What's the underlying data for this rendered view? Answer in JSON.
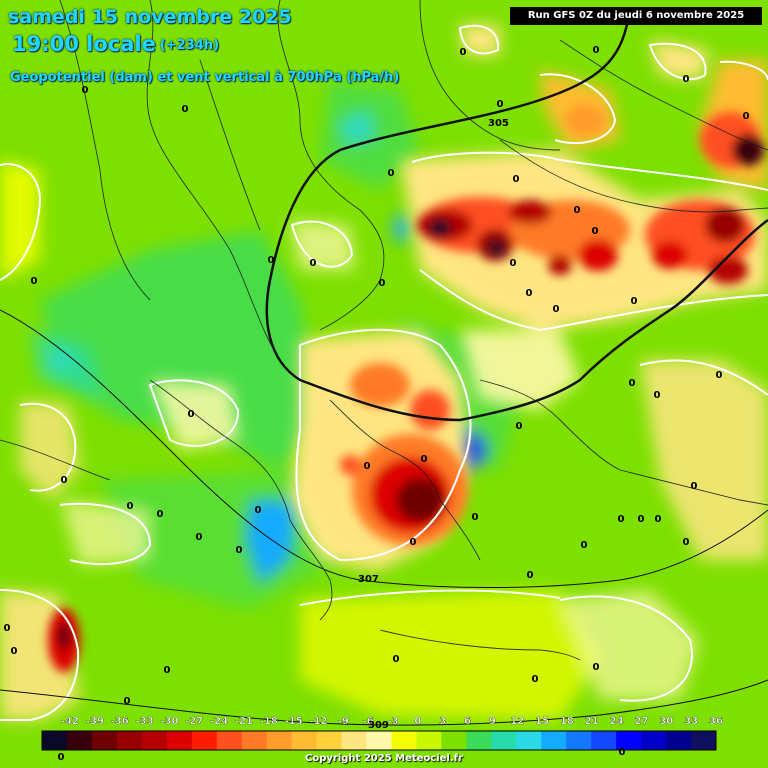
{
  "header": {
    "date": "samedi 15 novembre 2025",
    "time": "19:00 locale",
    "lead": "(+234h)",
    "field": "Geopotentiel (dam) et vent vertical à 700hPa (hPa/h)"
  },
  "run_label": "Run GFS 0Z du jeudi 6 novembre 2025",
  "copyright": "Copyright 2025 Meteociel.fr",
  "legend": {
    "ticks": [
      "-42",
      "-39",
      "-36",
      "-33",
      "-30",
      "-27",
      "-24",
      "-21",
      "-18",
      "-15",
      "-12",
      "-9",
      "-6",
      "-3",
      "0",
      "3",
      "6",
      "9",
      "12",
      "15",
      "18",
      "21",
      "24",
      "27",
      "30",
      "33",
      "36"
    ],
    "colors": [
      "#0a0a28",
      "#38000a",
      "#6e0000",
      "#960000",
      "#b40000",
      "#dc0000",
      "#ff1c00",
      "#ff5020",
      "#ff7a28",
      "#ff9c2c",
      "#ffbc32",
      "#ffd23c",
      "#ffe682",
      "#fff8aa",
      "#f6ff00",
      "#c8f800",
      "#7ee000",
      "#3cdc5a",
      "#28dcaa",
      "#2ad8e6",
      "#14aaff",
      "#1478ff",
      "#1448ff",
      "#0000ff",
      "#0000c8",
      "#000090",
      "#101060"
    ]
  },
  "contours": {
    "labels": [
      "305",
      "307",
      "309"
    ]
  },
  "zero_labels": [
    "0"
  ]
}
